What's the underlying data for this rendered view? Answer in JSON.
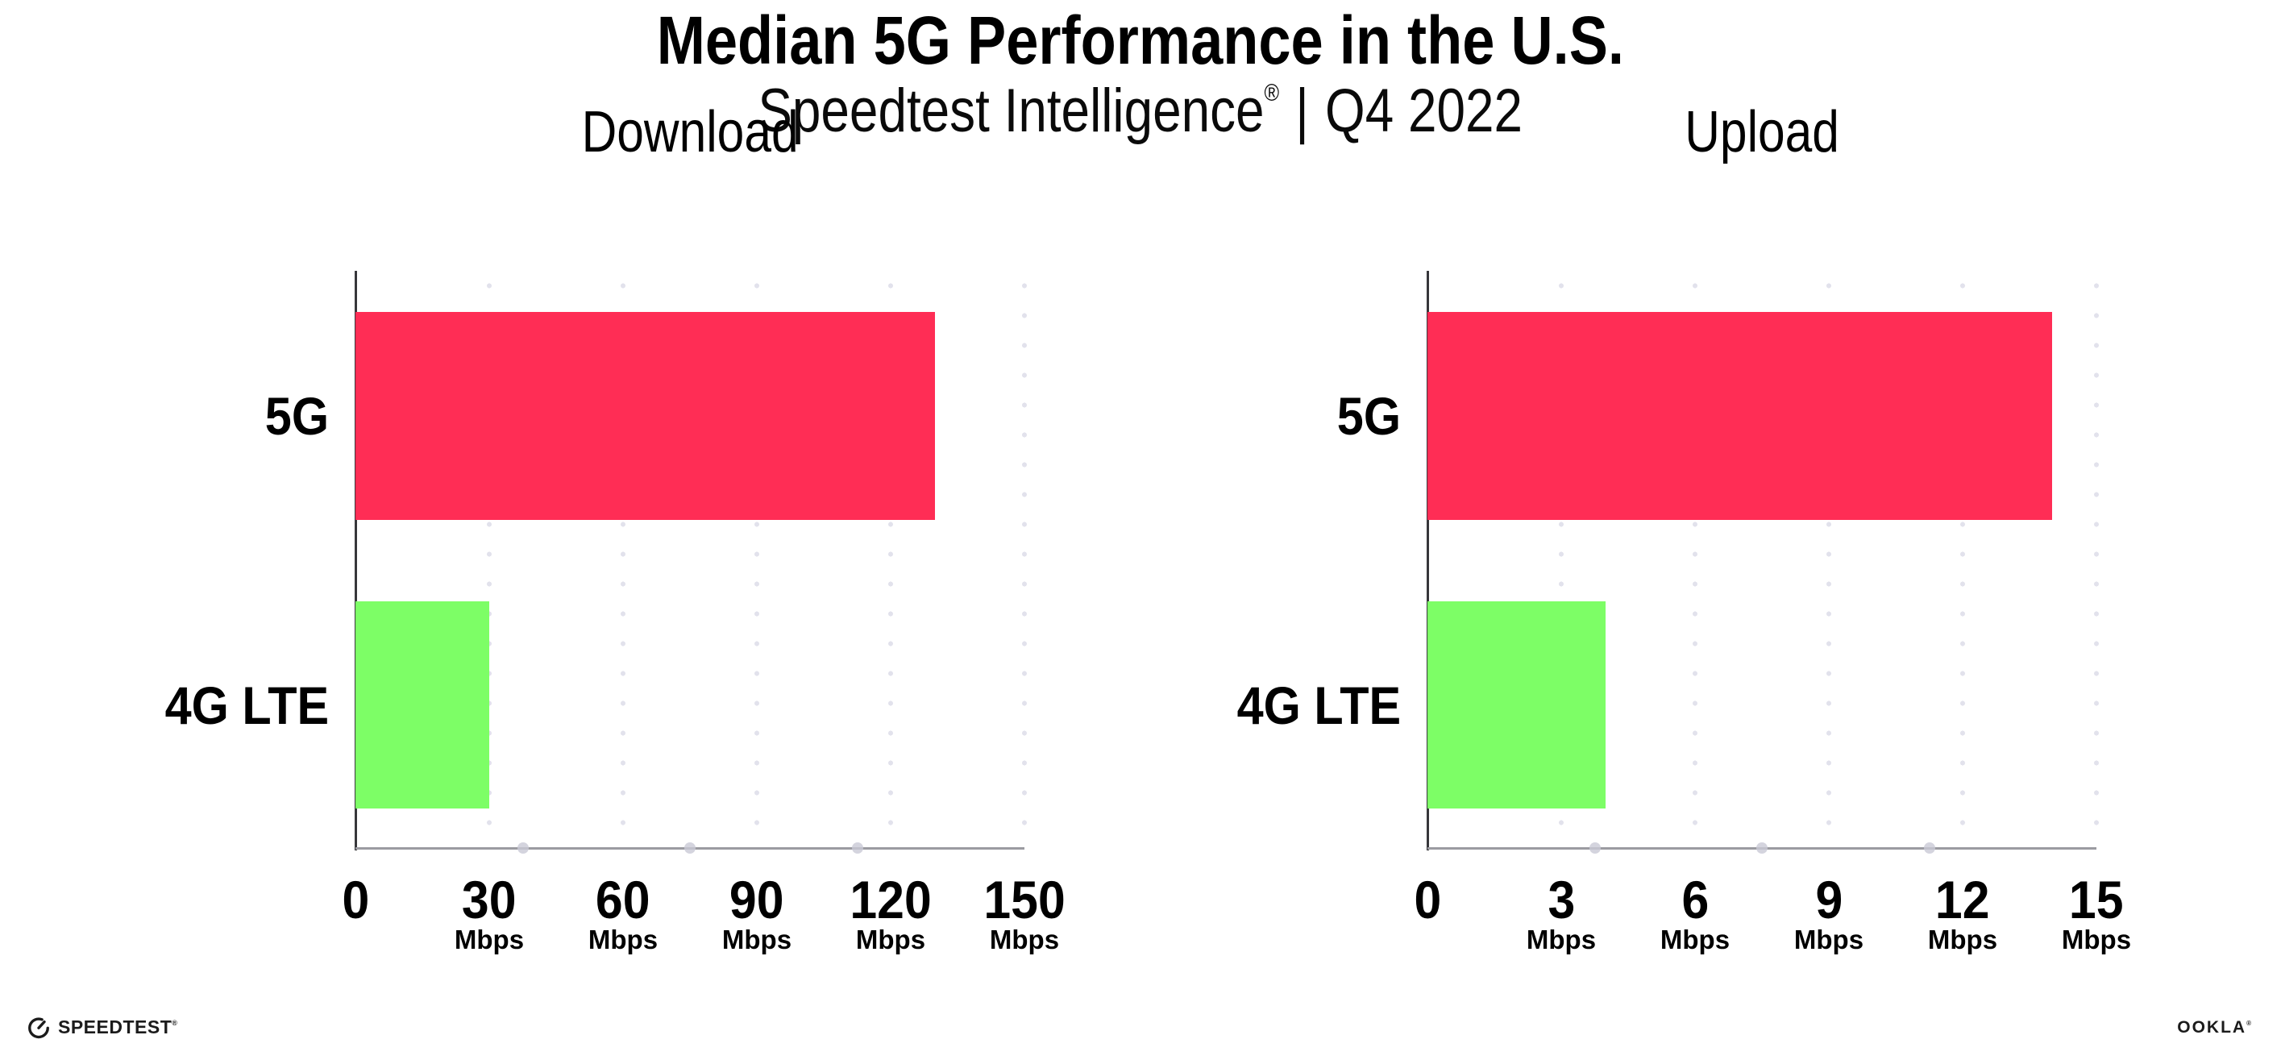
{
  "header": {
    "title": "Median 5G Performance in the U.S.",
    "subtitle_brand": "Speedtest Intelligence",
    "subtitle_registered": "®",
    "subtitle_divider": "|",
    "subtitle_period": "Q4 2022"
  },
  "chart_data": [
    {
      "type": "bar",
      "orientation": "horizontal",
      "title": "Download",
      "categories": [
        "5G",
        "4G LTE"
      ],
      "values": [
        130,
        30
      ],
      "unit": "Mbps",
      "xlim": [
        0,
        150
      ],
      "xticks": [
        0,
        30,
        60,
        90,
        120,
        150
      ],
      "bar_colors": [
        "#FF2D55",
        "#7DFE66"
      ],
      "grid": "dotted-vertical",
      "legend": "none"
    },
    {
      "type": "bar",
      "orientation": "horizontal",
      "title": "Upload",
      "categories": [
        "5G",
        "4G LTE"
      ],
      "values": [
        14,
        4
      ],
      "unit": "Mbps",
      "xlim": [
        0,
        15
      ],
      "xticks": [
        0,
        3,
        6,
        9,
        12,
        15
      ],
      "bar_colors": [
        "#FF2D55",
        "#7DFE66"
      ],
      "grid": "dotted-vertical",
      "legend": "none"
    }
  ],
  "colors": {
    "bar_5g": "#FF2D55",
    "bar_4g_lte": "#7DFE66",
    "x_axis_line": "#9B9BA1",
    "y_spine": "#37373B",
    "gridline_dots": "#E2E2EC",
    "minor_tick_dots": "#C9C9D6",
    "text": "#000000",
    "background": "#FFFFFF"
  },
  "footer": {
    "speedtest_label": "SPEEDTEST",
    "speedtest_mark": "®",
    "ookla_label": "OOKLA",
    "ookla_mark": "®"
  }
}
